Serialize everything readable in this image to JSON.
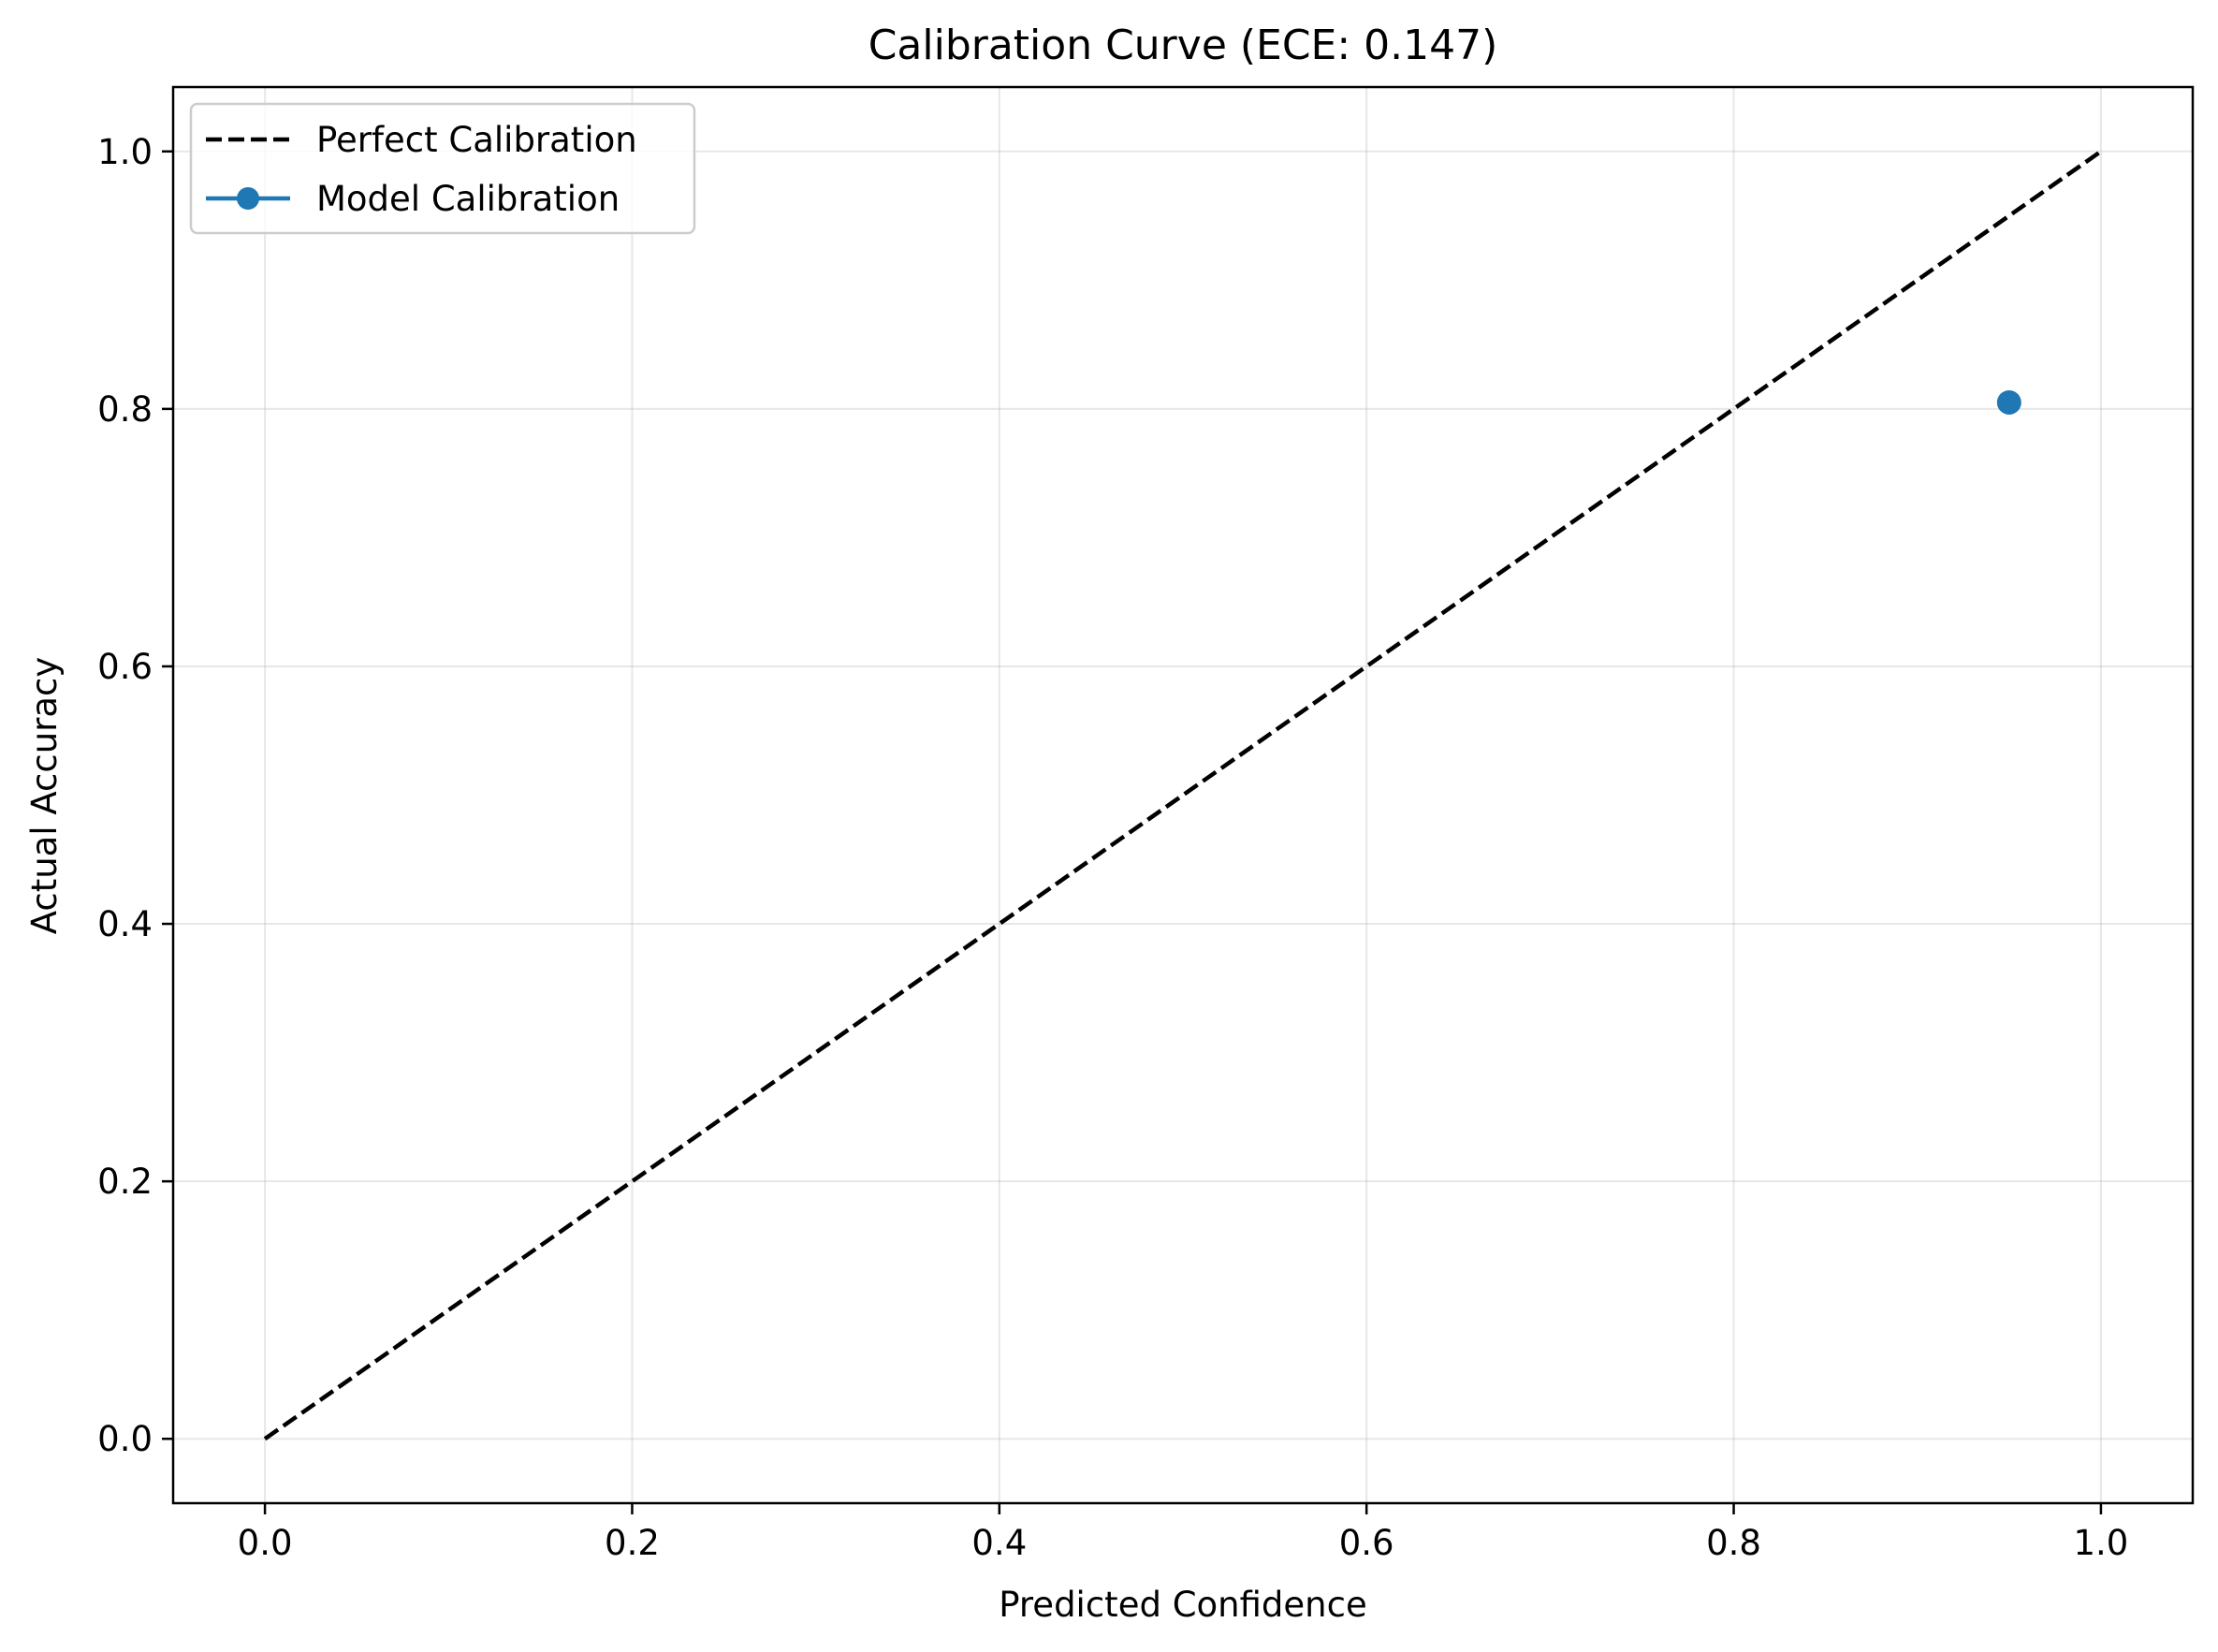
{
  "chart_data": {
    "type": "line",
    "title": "Calibration Curve (ECE: 0.147)",
    "xlabel": "Predicted Confidence",
    "ylabel": "Actual Accuracy",
    "xlim": [
      -0.05,
      1.05
    ],
    "ylim": [
      -0.05,
      1.05
    ],
    "xticks": [
      0.0,
      0.2,
      0.4,
      0.6,
      0.8,
      1.0
    ],
    "yticks": [
      0.0,
      0.2,
      0.4,
      0.6,
      0.8,
      1.0
    ],
    "xtick_labels": [
      "0.0",
      "0.2",
      "0.4",
      "0.6",
      "0.8",
      "1.0"
    ],
    "ytick_labels": [
      "0.0",
      "0.2",
      "0.4",
      "0.6",
      "0.8",
      "1.0"
    ],
    "grid": true,
    "legend_position": "top-left",
    "series": [
      {
        "name": "Perfect Calibration",
        "style": "dashed",
        "marker": "none",
        "color": "#000000",
        "x": [
          0.0,
          1.0
        ],
        "y": [
          0.0,
          1.0
        ]
      },
      {
        "name": "Model Calibration",
        "style": "solid",
        "marker": "circle",
        "color": "#1f77b4",
        "x": [
          0.95
        ],
        "y": [
          0.805
        ]
      }
    ]
  }
}
